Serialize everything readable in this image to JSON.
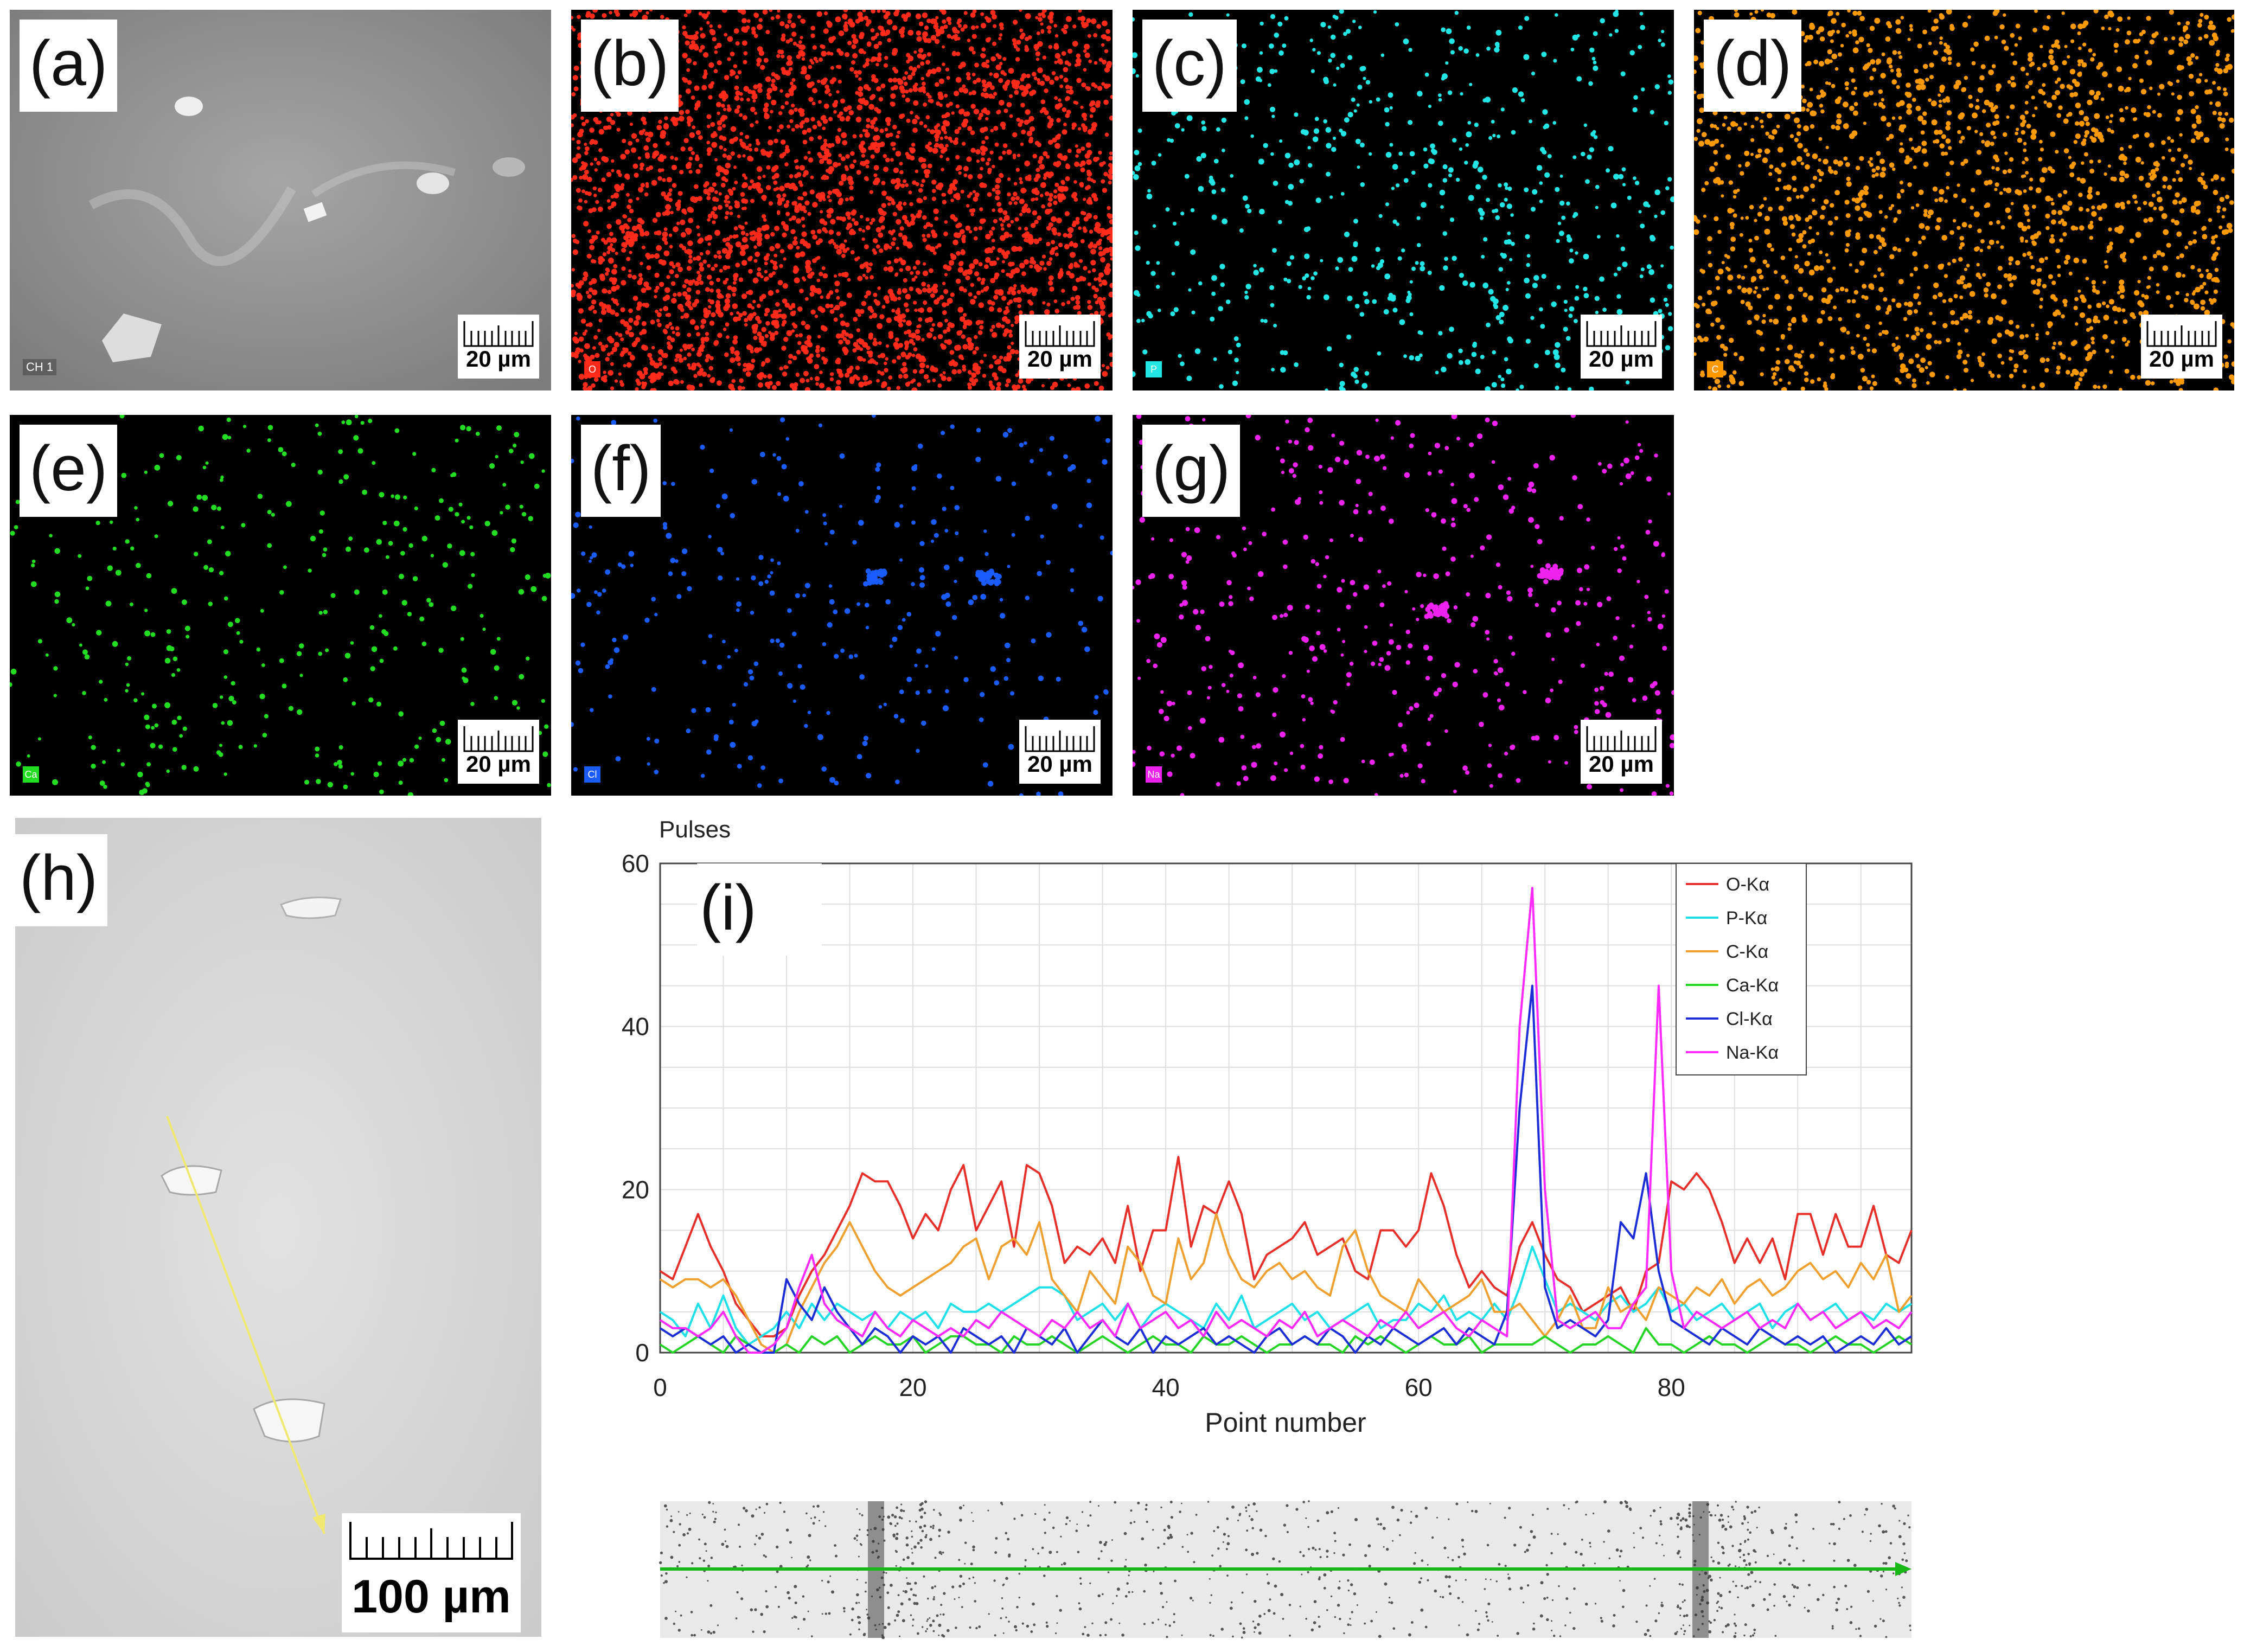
{
  "panels": [
    {
      "label": "(a)",
      "scale": "20 µm",
      "element": "",
      "overlay": "CH 1",
      "color": "#9a9a9a"
    },
    {
      "label": "(b)",
      "scale": "20 µm",
      "element": "O",
      "color": "#ff2a1a"
    },
    {
      "label": "(c)",
      "scale": "20 µm",
      "element": "P",
      "color": "#22e5e5"
    },
    {
      "label": "(d)",
      "scale": "20 µm",
      "element": "C",
      "color": "#ff9900"
    },
    {
      "label": "(e)",
      "scale": "20 µm",
      "element": "Ca",
      "color": "#22dd22"
    },
    {
      "label": "(f)",
      "scale": "20 µm",
      "element": "Cl",
      "color": "#1a5cff"
    },
    {
      "label": "(g)",
      "scale": "20 µm",
      "element": "Na",
      "color": "#ee22ee"
    },
    {
      "label": "(h)",
      "scale": "100 µm"
    },
    {
      "label": "(i)"
    }
  ],
  "chart_data": {
    "type": "line",
    "title": "",
    "ylabel": "Pulses",
    "xlabel": "Point number",
    "xlim": [
      0,
      99
    ],
    "ylim": [
      0,
      60
    ],
    "xticks": [
      0,
      20,
      40,
      60,
      80
    ],
    "yticks": [
      0,
      20,
      40,
      60
    ],
    "grid": true,
    "legend_position": "top-right",
    "series": [
      {
        "name": "O-Kα",
        "color": "#e8302a",
        "values": [
          10,
          9,
          13,
          17,
          13,
          10,
          6,
          4,
          2,
          2,
          3,
          7,
          10,
          12,
          15,
          18,
          22,
          21,
          21,
          18,
          14,
          17,
          15,
          20,
          23,
          15,
          18,
          21,
          13,
          23,
          22,
          18,
          11,
          13,
          12,
          14,
          11,
          18,
          10,
          15,
          15,
          24,
          13,
          18,
          17,
          21,
          17,
          9,
          12,
          13,
          14,
          16,
          12,
          13,
          14,
          10,
          9,
          15,
          15,
          13,
          15,
          22,
          18,
          12,
          8,
          10,
          8,
          7,
          13,
          16,
          12,
          9,
          8,
          5,
          6,
          7,
          8,
          5,
          10,
          11,
          21,
          20,
          22,
          20,
          16,
          11,
          14,
          11,
          14,
          9,
          17,
          17,
          12,
          17,
          13,
          13,
          18,
          12,
          11,
          15
        ]
      },
      {
        "name": "P-Kα",
        "color": "#1ee0e8",
        "values": [
          5,
          4,
          2,
          6,
          3,
          7,
          3,
          1,
          2,
          3,
          5,
          3,
          6,
          4,
          6,
          5,
          4,
          5,
          3,
          5,
          4,
          5,
          3,
          6,
          5,
          5,
          6,
          5,
          6,
          7,
          8,
          8,
          7,
          4,
          5,
          6,
          4,
          6,
          3,
          5,
          6,
          5,
          4,
          3,
          6,
          4,
          7,
          3,
          4,
          5,
          6,
          4,
          5,
          3,
          4,
          5,
          6,
          3,
          4,
          4,
          6,
          5,
          7,
          4,
          5,
          4,
          6,
          4,
          8,
          13,
          9,
          5,
          6,
          5,
          4,
          6,
          7,
          5,
          6,
          8,
          5,
          6,
          4,
          5,
          6,
          4,
          5,
          6,
          3,
          5,
          6,
          4,
          5,
          6,
          4,
          5,
          4,
          6,
          5,
          6
        ]
      },
      {
        "name": "C-Kα",
        "color": "#f0a030",
        "values": [
          9,
          8,
          9,
          9,
          8,
          9,
          7,
          4,
          1,
          0,
          1,
          5,
          8,
          11,
          13,
          16,
          13,
          10,
          8,
          7,
          8,
          9,
          10,
          11,
          13,
          14,
          9,
          13,
          14,
          12,
          16,
          9,
          7,
          5,
          10,
          8,
          6,
          13,
          11,
          7,
          6,
          14,
          9,
          11,
          17,
          12,
          9,
          8,
          10,
          11,
          9,
          10,
          8,
          7,
          13,
          15,
          10,
          7,
          6,
          5,
          9,
          7,
          5,
          6,
          7,
          9,
          5,
          5,
          6,
          4,
          2,
          4,
          7,
          3,
          3,
          8,
          5,
          6,
          4,
          8,
          7,
          6,
          8,
          7,
          9,
          6,
          8,
          9,
          7,
          8,
          10,
          11,
          9,
          10,
          8,
          11,
          9,
          12,
          5,
          7
        ]
      },
      {
        "name": "Ca-Kα",
        "color": "#26d426",
        "values": [
          1,
          0,
          1,
          2,
          1,
          0,
          2,
          1,
          0,
          0,
          1,
          0,
          2,
          1,
          2,
          0,
          1,
          2,
          1,
          1,
          2,
          0,
          1,
          2,
          2,
          1,
          1,
          0,
          2,
          1,
          1,
          2,
          1,
          0,
          1,
          2,
          1,
          0,
          1,
          2,
          1,
          1,
          0,
          2,
          1,
          1,
          2,
          1,
          0,
          1,
          1,
          2,
          1,
          1,
          0,
          2,
          1,
          2,
          1,
          0,
          1,
          2,
          1,
          1,
          2,
          0,
          1,
          1,
          1,
          1,
          2,
          1,
          0,
          1,
          1,
          2,
          1,
          0,
          3,
          1,
          1,
          0,
          1,
          2,
          1,
          1,
          0,
          1,
          2,
          1,
          1,
          0,
          1,
          2,
          1,
          1,
          0,
          1,
          2,
          1
        ]
      },
      {
        "name": "Cl-Kα",
        "color": "#1c2ed6",
        "values": [
          3,
          2,
          3,
          2,
          1,
          2,
          0,
          1,
          0,
          0,
          9,
          6,
          4,
          8,
          5,
          3,
          1,
          3,
          2,
          0,
          2,
          1,
          2,
          0,
          3,
          2,
          1,
          2,
          0,
          3,
          2,
          1,
          3,
          0,
          2,
          4,
          2,
          1,
          3,
          0,
          2,
          1,
          2,
          3,
          1,
          2,
          1,
          0,
          2,
          3,
          1,
          2,
          1,
          3,
          2,
          0,
          2,
          1,
          3,
          2,
          1,
          2,
          3,
          1,
          3,
          2,
          1,
          5,
          30,
          45,
          8,
          3,
          4,
          3,
          2,
          4,
          16,
          14,
          22,
          10,
          4,
          3,
          2,
          1,
          3,
          2,
          1,
          3,
          2,
          1,
          2,
          1,
          2,
          0,
          1,
          2,
          1,
          3,
          1,
          2
        ]
      },
      {
        "name": "Na-Kα",
        "color": "#ff2aff",
        "values": [
          4,
          3,
          3,
          2,
          3,
          5,
          2,
          0,
          0,
          1,
          3,
          8,
          12,
          6,
          4,
          3,
          2,
          5,
          3,
          2,
          4,
          3,
          2,
          3,
          2,
          4,
          3,
          5,
          4,
          3,
          2,
          4,
          3,
          5,
          3,
          4,
          2,
          6,
          3,
          4,
          5,
          3,
          4,
          2,
          5,
          3,
          4,
          3,
          2,
          4,
          3,
          5,
          2,
          3,
          4,
          3,
          2,
          4,
          3,
          5,
          3,
          4,
          5,
          3,
          2,
          4,
          3,
          2,
          40,
          57,
          20,
          4,
          3,
          4,
          5,
          3,
          3,
          6,
          8,
          45,
          10,
          3,
          5,
          4,
          3,
          4,
          5,
          3,
          4,
          3,
          6,
          4,
          5,
          3,
          4,
          5,
          3,
          4,
          3,
          5
        ]
      }
    ]
  }
}
